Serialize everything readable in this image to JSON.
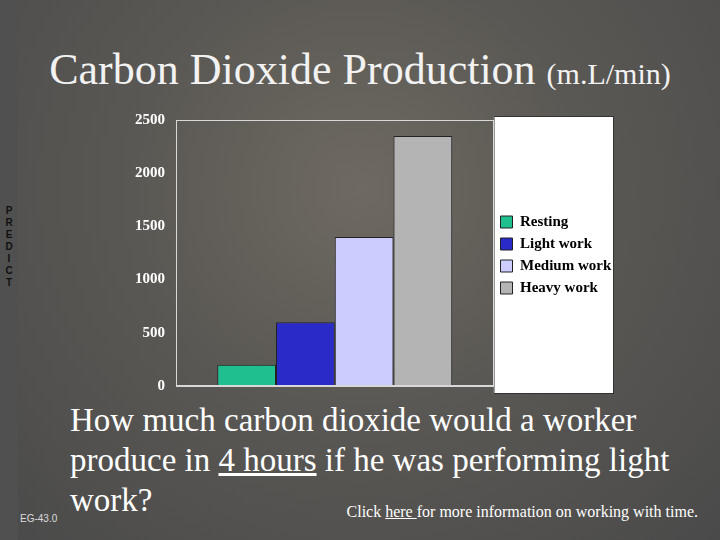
{
  "chart_data": {
    "type": "bar",
    "title": "Carbon Dioxide Production (m.L/min)",
    "categories": [
      null
    ],
    "series": [
      {
        "name": "Resting",
        "color": "#1fbf8f",
        "values": [
          200
        ]
      },
      {
        "name": "Light work",
        "color": "#2a2ac8",
        "values": [
          600
        ]
      },
      {
        "name": "Medium work",
        "color": "#ccccff",
        "values": [
          1400
        ]
      },
      {
        "name": "Heavy work",
        "color": "#b4b4b4",
        "values": [
          2350
        ]
      }
    ],
    "ylim": [
      0,
      2500
    ],
    "yticks": [
      0,
      500,
      1000,
      1500,
      2000,
      2500
    ],
    "grid": false,
    "legend": "right",
    "tick_labels": "y"
  },
  "slide": {
    "side_label": "PREDICT",
    "question": {
      "before": "How much carbon dioxide would a worker produce in ",
      "underlined": "4 hours",
      "after": " if he was performing light work?"
    },
    "note": {
      "before": "Click ",
      "link": "here ",
      "after": "for more information on working with time."
    },
    "code": "EG-43.0"
  }
}
